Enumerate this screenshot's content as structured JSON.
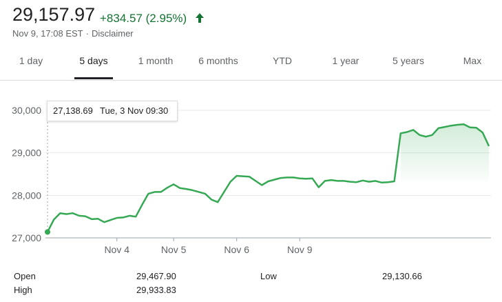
{
  "header": {
    "price": "29,157.97",
    "change": "+834.57 (2.95%)",
    "timestamp": "Nov 9, 17:08 EST",
    "disclaimer": "Disclaimer",
    "up_color": "#137333",
    "arrow_icon": "arrow-up-icon"
  },
  "tabs": [
    {
      "label": "1 day"
    },
    {
      "label": "5 days",
      "active": true
    },
    {
      "label": "1 month"
    },
    {
      "label": "6 months"
    },
    {
      "label": "YTD"
    },
    {
      "label": "1 year"
    },
    {
      "label": "5 years"
    },
    {
      "label": "Max"
    }
  ],
  "tooltip": {
    "value": "27,138.69",
    "time": "Tue, 3 Nov 09:30"
  },
  "chart_data": {
    "type": "area",
    "title": "",
    "xlabel": "",
    "ylabel": "",
    "ylim": [
      27000,
      30000
    ],
    "yticks": [
      "27,000",
      "28,000",
      "29,000",
      "30,000"
    ],
    "yticks_values": [
      27000,
      28000,
      29000,
      30000
    ],
    "xticks": [
      "Nov 4",
      "Nov 5",
      "Nov 6",
      "Nov 9"
    ],
    "xticks_positions": [
      11,
      20,
      30,
      40
    ],
    "grid": "horizontal",
    "line_color": "#34a853",
    "series": [
      {
        "values": [
          27138.69,
          27430,
          27580,
          27560,
          27580,
          27520,
          27510,
          27440,
          27450,
          27370,
          27420,
          27470,
          27480,
          27520,
          27500,
          27780,
          28040,
          28080,
          28080,
          28180,
          28260,
          28170,
          28150,
          28120,
          28080,
          28040,
          27900,
          27840,
          28080,
          28320,
          28460,
          28450,
          28440,
          28340,
          28240,
          28330,
          28370,
          28410,
          28420,
          28420,
          28400,
          28390,
          28400,
          28190,
          28340,
          28360,
          28340,
          28340,
          28320,
          28310,
          28350,
          28320,
          28340,
          28300,
          28310,
          28330,
          29460,
          29490,
          29540,
          29420,
          29380,
          29420,
          29580,
          29610,
          29640,
          29660,
          29670,
          29600,
          29590,
          29480,
          29157.97
        ]
      }
    ]
  },
  "stats": {
    "open_label": "Open",
    "open_value": "29,467.90",
    "high_label": "High",
    "high_value": "29,933.83",
    "low_label": "Low",
    "low_value": "29,130.66"
  }
}
